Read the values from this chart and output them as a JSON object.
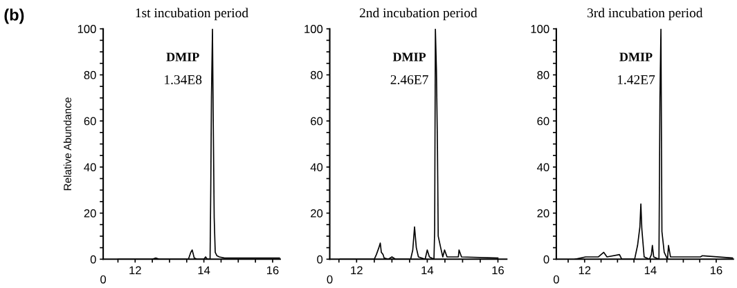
{
  "chart_data": [
    {
      "type": "line",
      "title": "1st incubation period",
      "ylabel": "Relative Abundance",
      "annotations": [
        "(b)",
        "DMIP",
        "1.34E8",
        "0"
      ],
      "series": [
        {
          "color": "#000000",
          "x": [
            11.5,
            12.5,
            12.6,
            12.7,
            13.55,
            13.62,
            13.66,
            13.72,
            13.8,
            14.0,
            14.05,
            14.1,
            14.18,
            14.2,
            14.22,
            14.25,
            14.27,
            14.3,
            14.33,
            14.38,
            14.45,
            14.6,
            16.2
          ],
          "values": [
            0,
            0,
            0.5,
            0,
            0,
            3,
            4,
            0.5,
            0,
            0,
            1,
            0,
            0,
            30,
            70,
            100,
            64,
            18,
            3,
            1.5,
            1,
            0.5,
            0.5
          ]
        }
      ],
      "xlim": [
        11.07,
        16.22
      ],
      "xticks": [
        {
          "value": 11.5,
          "label": null
        },
        12,
        {
          "value": 12.5,
          "label": null
        },
        {
          "value": 13,
          "label": null
        },
        {
          "value": 13.5,
          "label": null
        },
        14,
        {
          "value": 14.5,
          "label": null
        },
        {
          "value": 15,
          "label": null
        },
        {
          "value": 15.5,
          "label": null
        },
        16
      ],
      "ylim": [
        0,
        100
      ],
      "yticks": [
        0,
        {
          "value": 5,
          "label": null
        },
        {
          "value": 10,
          "label": null
        },
        {
          "value": 15,
          "label": null
        },
        20,
        {
          "value": 25,
          "label": null
        },
        {
          "value": 30,
          "label": null
        },
        {
          "value": 35,
          "label": null
        },
        40,
        {
          "value": 45,
          "label": null
        },
        {
          "value": 50,
          "label": null
        },
        {
          "value": 55,
          "label": null
        },
        60,
        {
          "value": 65,
          "label": null
        },
        {
          "value": 70,
          "label": null
        },
        {
          "value": 75,
          "label": null
        },
        80,
        {
          "value": 85,
          "label": null
        },
        {
          "value": 90,
          "label": null
        },
        {
          "value": 95,
          "label": null
        },
        100
      ]
    },
    {
      "type": "line",
      "title": "2nd incubation period",
      "annotations": [
        "DMIP",
        "2.46E7",
        "0"
      ],
      "series": [
        {
          "color": "#000000",
          "x": [
            11.53,
            12.5,
            12.56,
            12.63,
            12.67,
            12.7,
            12.75,
            12.78,
            12.9,
            13.0,
            13.1,
            13.53,
            13.59,
            13.64,
            13.69,
            13.75,
            13.94,
            14.0,
            14.06,
            14.19,
            14.21,
            14.23,
            14.26,
            14.29,
            14.31,
            14.38,
            14.44,
            14.49,
            14.56,
            14.88,
            14.9,
            14.97,
            16.0
          ],
          "values": [
            0,
            0,
            2,
            5,
            7,
            3,
            2,
            0.5,
            0,
            1,
            0,
            0,
            4,
            14,
            5,
            1,
            0,
            4,
            1,
            0,
            13,
            100,
            82,
            47,
            10,
            5,
            1,
            4,
            1,
            1,
            4,
            1,
            0.5
          ]
        }
      ],
      "xlim": [
        11.24,
        16.25
      ],
      "xticks": [
        {
          "value": 11.5,
          "label": null
        },
        12,
        {
          "value": 12.5,
          "label": null
        },
        {
          "value": 13,
          "label": null
        },
        {
          "value": 13.5,
          "label": null
        },
        14,
        {
          "value": 14.5,
          "label": null
        },
        {
          "value": 15,
          "label": null
        },
        {
          "value": 15.5,
          "label": null
        },
        16
      ],
      "ylim": [
        0,
        100
      ],
      "yticks": [
        0,
        {
          "value": 5,
          "label": null
        },
        {
          "value": 10,
          "label": null
        },
        {
          "value": 15,
          "label": null
        },
        20,
        {
          "value": 25,
          "label": null
        },
        {
          "value": 30,
          "label": null
        },
        {
          "value": 35,
          "label": null
        },
        40,
        {
          "value": 45,
          "label": null
        },
        {
          "value": 50,
          "label": null
        },
        {
          "value": 55,
          "label": null
        },
        60,
        {
          "value": 65,
          "label": null
        },
        {
          "value": 70,
          "label": null
        },
        {
          "value": 75,
          "label": null
        },
        80,
        {
          "value": 85,
          "label": null
        },
        {
          "value": 90,
          "label": null
        },
        {
          "value": 95,
          "label": null
        },
        100
      ]
    },
    {
      "type": "line",
      "title": "3rd incubation period",
      "annotations": [
        "DMIP",
        "1.42E7",
        "0"
      ],
      "series": [
        {
          "color": "#000000",
          "x": [
            11.71,
            12.03,
            12.42,
            12.58,
            12.68,
            13.06,
            13.13,
            13.52,
            13.61,
            13.68,
            13.71,
            13.74,
            13.81,
            13.97,
            14.03,
            14.06,
            14.1,
            14.26,
            14.29,
            14.32,
            14.35,
            14.42,
            14.52,
            14.55,
            14.61,
            15.52,
            15.58,
            16.5
          ],
          "values": [
            0,
            1,
            1,
            3,
            1,
            2,
            0,
            0,
            6,
            14,
            24,
            13,
            1,
            0,
            2,
            6,
            1,
            0,
            70,
            100,
            12,
            3,
            0,
            6,
            1,
            1,
            1.5,
            0.5
          ]
        }
      ],
      "xlim": [
        11.14,
        16.52
      ],
      "xticks": [
        {
          "value": 11.5,
          "label": null
        },
        12,
        {
          "value": 12.5,
          "label": null
        },
        {
          "value": 13,
          "label": null
        },
        {
          "value": 13.5,
          "label": null
        },
        14,
        {
          "value": 14.5,
          "label": null
        },
        {
          "value": 15,
          "label": null
        },
        {
          "value": 15.5,
          "label": null
        },
        16
      ],
      "ylim": [
        0,
        100
      ],
      "yticks": [
        0,
        {
          "value": 5,
          "label": null
        },
        {
          "value": 10,
          "label": null
        },
        {
          "value": 15,
          "label": null
        },
        20,
        {
          "value": 25,
          "label": null
        },
        {
          "value": 30,
          "label": null
        },
        {
          "value": 35,
          "label": null
        },
        40,
        {
          "value": 45,
          "label": null
        },
        {
          "value": 50,
          "label": null
        },
        {
          "value": 55,
          "label": null
        },
        60,
        {
          "value": 65,
          "label": null
        },
        {
          "value": 70,
          "label": null
        },
        {
          "value": 75,
          "label": null
        },
        80,
        {
          "value": 85,
          "label": null
        },
        {
          "value": 90,
          "label": null
        },
        {
          "value": 95,
          "label": null
        },
        100
      ]
    }
  ]
}
